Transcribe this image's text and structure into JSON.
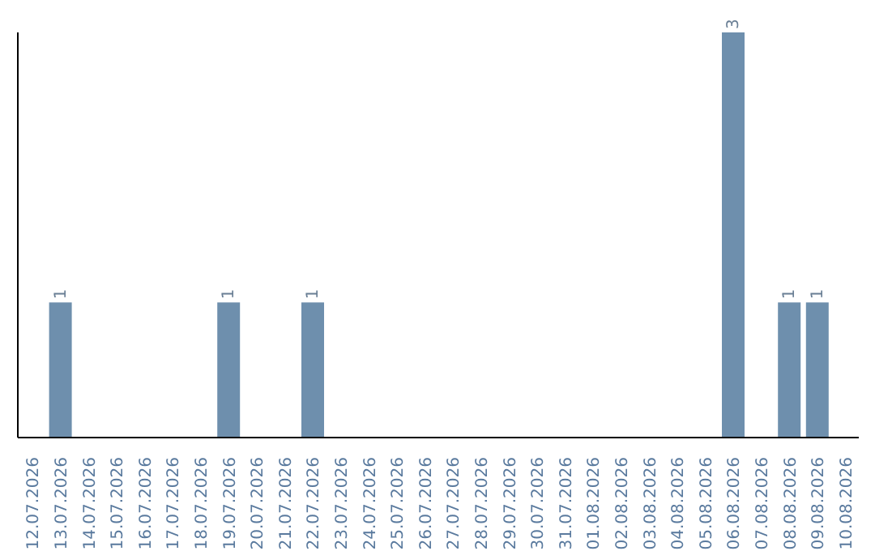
{
  "chart_data": {
    "type": "bar",
    "categories": [
      "12.07.2026",
      "13.07.2026",
      "14.07.2026",
      "15.07.2026",
      "16.07.2026",
      "17.07.2026",
      "18.07.2026",
      "19.07.2026",
      "20.07.2026",
      "21.07.2026",
      "22.07.2026",
      "23.07.2026",
      "24.07.2026",
      "25.07.2026",
      "26.07.2026",
      "27.07.2026",
      "28.07.2026",
      "29.07.2026",
      "30.07.2026",
      "31.07.2026",
      "01.08.2026",
      "02.08.2026",
      "03.08.2026",
      "04.08.2026",
      "05.08.2026",
      "06.08.2026",
      "07.08.2026",
      "08.08.2026",
      "09.08.2026",
      "10.08.2026"
    ],
    "values": [
      0,
      1,
      0,
      0,
      0,
      0,
      0,
      1,
      0,
      0,
      1,
      0,
      0,
      0,
      0,
      0,
      0,
      0,
      0,
      0,
      0,
      0,
      0,
      0,
      0,
      3,
      0,
      1,
      1,
      0
    ],
    "value_labels": [
      null,
      "1",
      null,
      null,
      null,
      null,
      null,
      "1",
      null,
      null,
      "1",
      null,
      null,
      null,
      null,
      null,
      null,
      null,
      null,
      null,
      null,
      null,
      null,
      null,
      null,
      "3",
      null,
      "1",
      "1",
      null
    ],
    "color": "#6e8fad",
    "grid": false,
    "legend": false,
    "tick_labels": "x"
  }
}
